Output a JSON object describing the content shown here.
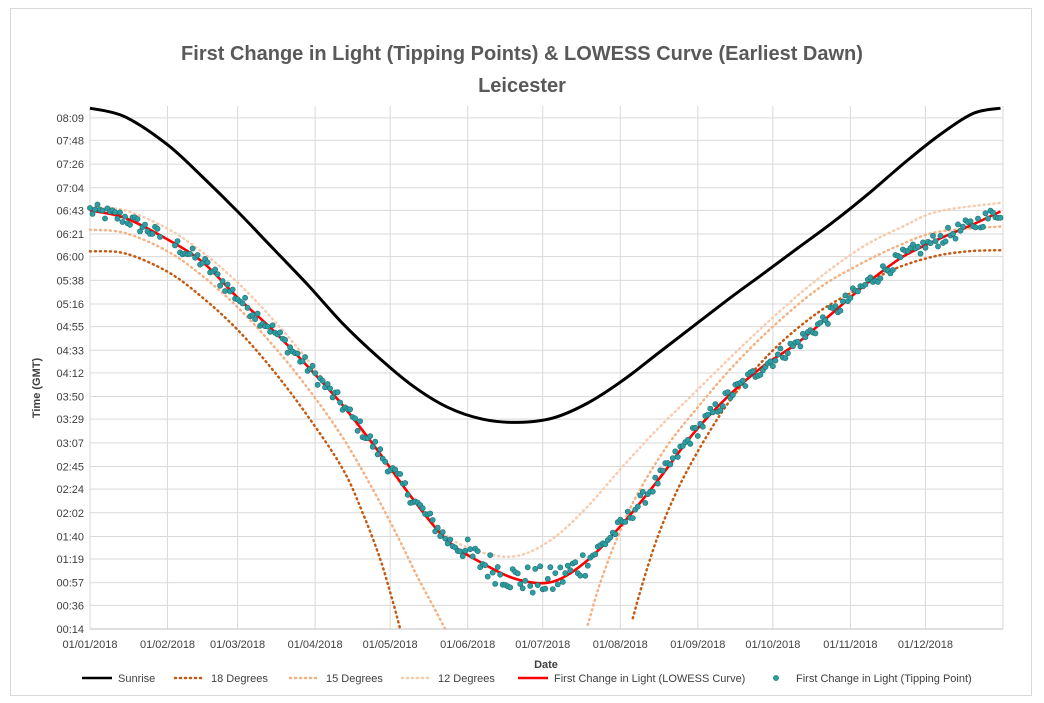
{
  "chart_data": {
    "type": "line",
    "title": "First Change in Light (Tipping Points) & LOWESS Curve (Earliest  Dawn)",
    "subtitle": "Leicester",
    "xlabel": "Date",
    "ylabel": "Time (GMT)",
    "x_ticks": [
      "01/01/2018",
      "01/02/2018",
      "01/03/2018",
      "01/04/2018",
      "01/05/2018",
      "01/06/2018",
      "01/07/2018",
      "01/08/2018",
      "01/09/2018",
      "01/10/2018",
      "01/11/2018",
      "01/12/2018"
    ],
    "y_ticks": [
      "00:14",
      "00:36",
      "00:57",
      "01:19",
      "01:40",
      "02:02",
      "02:24",
      "02:45",
      "03:07",
      "03:29",
      "03:50",
      "04:12",
      "04:33",
      "04:55",
      "05:16",
      "05:38",
      "06:00",
      "06:21",
      "06:43",
      "07:04",
      "07:26",
      "07:48",
      "08:09"
    ],
    "ylim": [
      "00:14",
      "08:20"
    ],
    "grid": true,
    "legend_position": "bottom",
    "series": [
      {
        "name": "Sunrise",
        "style": "solid",
        "color": "#000000",
        "points": [
          [
            1,
            "08:18"
          ],
          [
            15,
            "08:10"
          ],
          [
            32,
            "07:44"
          ],
          [
            46,
            "07:14"
          ],
          [
            60,
            "06:42"
          ],
          [
            74,
            "06:08"
          ],
          [
            88,
            "05:34"
          ],
          [
            102,
            "04:58"
          ],
          [
            116,
            "04:27"
          ],
          [
            130,
            "04:00"
          ],
          [
            144,
            "03:40"
          ],
          [
            158,
            "03:29"
          ],
          [
            172,
            "03:26"
          ],
          [
            186,
            "03:30"
          ],
          [
            200,
            "03:44"
          ],
          [
            214,
            "04:05"
          ],
          [
            228,
            "04:30"
          ],
          [
            242,
            "04:55"
          ],
          [
            256,
            "05:20"
          ],
          [
            270,
            "05:44"
          ],
          [
            284,
            "06:08"
          ],
          [
            298,
            "06:32"
          ],
          [
            312,
            "06:58"
          ],
          [
            326,
            "07:26"
          ],
          [
            340,
            "07:52"
          ],
          [
            354,
            "08:13"
          ],
          [
            365,
            "08:18"
          ]
        ]
      },
      {
        "name": "18 Degrees",
        "style": "dotted",
        "color": "#c55a11",
        "points": [
          [
            1,
            "06:05"
          ],
          [
            15,
            "06:03"
          ],
          [
            32,
            "05:46"
          ],
          [
            46,
            "05:22"
          ],
          [
            60,
            "04:52"
          ],
          [
            74,
            "04:15"
          ],
          [
            88,
            "03:32"
          ],
          [
            102,
            "02:43"
          ],
          [
            110,
            "02:02"
          ],
          [
            117,
            "01:19"
          ],
          [
            122,
            "00:40"
          ],
          [
            125,
            "00:14"
          ]
        ]
      },
      {
        "name": "18 Degrees",
        "style": "dotted",
        "color": "#c55a11",
        "points": [
          [
            218,
            "00:24"
          ],
          [
            222,
            "00:57"
          ],
          [
            228,
            "01:40"
          ],
          [
            236,
            "02:24"
          ],
          [
            246,
            "03:07"
          ],
          [
            258,
            "03:50"
          ],
          [
            274,
            "04:33"
          ],
          [
            292,
            "05:08"
          ],
          [
            308,
            "05:30"
          ],
          [
            322,
            "05:48"
          ],
          [
            338,
            "06:00"
          ],
          [
            352,
            "06:05"
          ],
          [
            365,
            "06:06"
          ]
        ]
      },
      {
        "name": "15 Degrees",
        "style": "dotted",
        "color": "#f4b183",
        "points": [
          [
            1,
            "06:25"
          ],
          [
            15,
            "06:22"
          ],
          [
            32,
            "06:05"
          ],
          [
            46,
            "05:42"
          ],
          [
            60,
            "05:13"
          ],
          [
            74,
            "04:38"
          ],
          [
            88,
            "03:58"
          ],
          [
            102,
            "03:12"
          ],
          [
            114,
            "02:24"
          ],
          [
            124,
            "01:40"
          ],
          [
            132,
            "01:02"
          ],
          [
            138,
            "00:36"
          ],
          [
            143,
            "00:14"
          ]
        ]
      },
      {
        "name": "15 Degrees",
        "style": "dotted",
        "color": "#f4b183",
        "points": [
          [
            200,
            "00:18"
          ],
          [
            205,
            "00:57"
          ],
          [
            212,
            "01:40"
          ],
          [
            220,
            "02:20"
          ],
          [
            232,
            "03:05"
          ],
          [
            244,
            "03:40"
          ],
          [
            258,
            "04:18"
          ],
          [
            274,
            "04:55"
          ],
          [
            292,
            "05:30"
          ],
          [
            308,
            "05:52"
          ],
          [
            324,
            "06:10"
          ],
          [
            340,
            "06:23"
          ],
          [
            365,
            "06:28"
          ]
        ]
      },
      {
        "name": "12 Degrees",
        "style": "dotted",
        "color": "#f8cbad",
        "points": [
          [
            1,
            "06:46"
          ],
          [
            15,
            "06:43"
          ],
          [
            32,
            "06:26"
          ],
          [
            46,
            "06:04"
          ],
          [
            60,
            "05:36"
          ],
          [
            74,
            "05:02"
          ],
          [
            88,
            "04:24"
          ],
          [
            102,
            "03:42"
          ],
          [
            116,
            "02:58"
          ],
          [
            130,
            "02:15"
          ],
          [
            144,
            "01:40"
          ],
          [
            158,
            "01:25"
          ],
          [
            172,
            "01:22"
          ],
          [
            186,
            "01:38"
          ],
          [
            200,
            "02:08"
          ],
          [
            214,
            "02:45"
          ],
          [
            228,
            "03:20"
          ],
          [
            242,
            "03:52"
          ],
          [
            256,
            "04:24"
          ],
          [
            270,
            "04:55"
          ],
          [
            284,
            "05:24"
          ],
          [
            298,
            "05:50"
          ],
          [
            312,
            "06:12"
          ],
          [
            326,
            "06:28"
          ],
          [
            340,
            "06:42"
          ],
          [
            365,
            "06:50"
          ]
        ]
      },
      {
        "name": "First Change in Light (LOWESS Curve)",
        "style": "solid",
        "color": "#ff0000",
        "points": [
          [
            1,
            "06:43"
          ],
          [
            15,
            "06:36"
          ],
          [
            32,
            "06:16"
          ],
          [
            46,
            "05:55"
          ],
          [
            60,
            "05:22"
          ],
          [
            74,
            "04:52"
          ],
          [
            88,
            "04:18"
          ],
          [
            102,
            "03:42"
          ],
          [
            116,
            "03:00"
          ],
          [
            130,
            "02:15"
          ],
          [
            144,
            "01:36"
          ],
          [
            158,
            "01:15"
          ],
          [
            172,
            "01:00"
          ],
          [
            186,
            "00:58"
          ],
          [
            200,
            "01:18"
          ],
          [
            214,
            "01:52"
          ],
          [
            228,
            "02:32"
          ],
          [
            242,
            "03:15"
          ],
          [
            256,
            "03:50"
          ],
          [
            270,
            "04:18"
          ],
          [
            284,
            "04:40"
          ],
          [
            298,
            "05:08"
          ],
          [
            312,
            "05:36"
          ],
          [
            326,
            "06:00"
          ],
          [
            340,
            "06:16"
          ],
          [
            354,
            "06:30"
          ],
          [
            365,
            "06:42"
          ]
        ]
      },
      {
        "name": "First Change in Light (Tipping Point)",
        "style": "markers",
        "color": "#2e9ea3"
      }
    ]
  },
  "legend": [
    {
      "label": "Sunrise",
      "color": "#000000",
      "style": "solid"
    },
    {
      "label": "18 Degrees",
      "color": "#c55a11",
      "style": "dotted"
    },
    {
      "label": "15 Degrees",
      "color": "#f4b183",
      "style": "dotted"
    },
    {
      "label": "12 Degrees",
      "color": "#f8cbad",
      "style": "dotted"
    },
    {
      "label": "First Change in Light (LOWESS Curve)",
      "color": "#ff0000",
      "style": "solid"
    },
    {
      "label": "First Change in Light (Tipping Point)",
      "color": "#2e9ea3",
      "style": "marker"
    }
  ]
}
